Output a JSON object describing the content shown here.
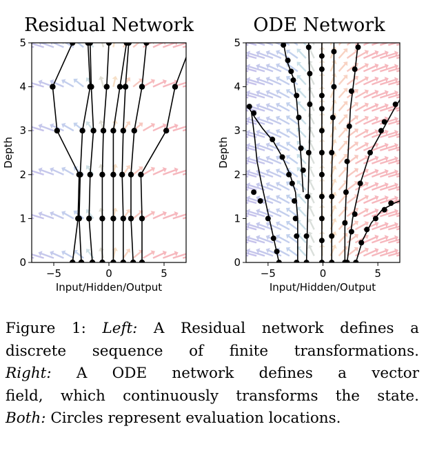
{
  "chart_data": [
    {
      "type": "line",
      "title": "Residual Network",
      "xlabel": "Input/Hidden/Output",
      "ylabel": "Depth",
      "xlim": [
        -7,
        7
      ],
      "ylim": [
        0,
        5
      ],
      "xticks": [
        "−5",
        "0",
        "5"
      ],
      "xtick_values": [
        -5,
        0,
        5
      ],
      "yticks": [
        "0",
        "1",
        "2",
        "3",
        "4",
        "5"
      ],
      "grid": false,
      "depths": [
        0,
        1,
        2,
        3,
        4,
        5
      ],
      "trajectories": [
        [
          -3.3,
          -2.8,
          -2.7,
          -4.7,
          -5.1,
          -3.3
        ],
        [
          -2.5,
          -2.7,
          -2.6,
          -2.4,
          -1.7,
          -1.9
        ],
        [
          -1.5,
          -1.8,
          -1.7,
          -1.4,
          -1.6,
          -1.7
        ],
        [
          -0.6,
          -0.6,
          -0.6,
          -0.5,
          -0.2,
          0.0
        ],
        [
          0.4,
          0.4,
          0.4,
          0.4,
          1.0,
          1.6
        ],
        [
          1.3,
          1.3,
          1.2,
          1.3,
          1.5,
          1.8
        ],
        [
          2.2,
          2.0,
          2.0,
          2.3,
          3.0,
          3.4
        ],
        [
          3.0,
          3.0,
          2.9,
          5.2,
          6.0,
          7.5
        ]
      ],
      "vector_field": "discrete"
    },
    {
      "type": "line",
      "title": "ODE Network",
      "xlabel": "Input/Hidden/Output",
      "ylabel": "Depth",
      "xlim": [
        -7,
        7
      ],
      "ylim": [
        0,
        5
      ],
      "xticks": [
        "−5",
        "0",
        "5"
      ],
      "xtick_values": [
        -5,
        0,
        5
      ],
      "yticks": [
        "0",
        "1",
        "2",
        "3",
        "4",
        "5"
      ],
      "grid": false,
      "trajectories": [
        {
          "x": [
            -4.0,
            -4.4,
            -4.8,
            -5.2,
            -5.6,
            -6.0,
            -6.2,
            -6.5
          ],
          "y": [
            0,
            0.45,
            0.9,
            1.35,
            1.8,
            2.3,
            2.8,
            3.4
          ],
          "markers": [
            [
              -4.0,
              0
            ],
            [
              -4.2,
              0.25
            ],
            [
              -4.5,
              0.55
            ],
            [
              -5.0,
              1.0
            ],
            [
              -5.7,
              1.4
            ],
            [
              -6.3,
              1.6
            ]
          ]
        },
        {
          "x": [
            -6.7,
            -6.2,
            -5.5,
            -4.5,
            -3.7,
            -3.0,
            -2.5,
            -2.3,
            -2.3
          ],
          "y": [
            3.5,
            3.3,
            3.05,
            2.75,
            2.4,
            2.0,
            1.6,
            1.0,
            0
          ],
          "markers": [
            [
              -6.7,
              3.55
            ],
            [
              -6.3,
              3.4
            ],
            [
              -4.6,
              2.8
            ],
            [
              -3.7,
              2.4
            ],
            [
              -3.1,
              2.0
            ],
            [
              -2.8,
              1.8
            ],
            [
              -2.6,
              1.4
            ],
            [
              -2.5,
              1.0
            ],
            [
              -2.4,
              0.6
            ],
            [
              -2.4,
              0
            ]
          ]
        },
        {
          "x": [
            -3.6,
            -3.3,
            -2.7,
            -2.4,
            -2.2,
            -2.0,
            -1.8
          ],
          "y": [
            5,
            4.6,
            4.2,
            3.7,
            3.1,
            2.4,
            1.6
          ],
          "markers": [
            [
              -3.6,
              4.95
            ],
            [
              -3.2,
              4.6
            ],
            [
              -2.9,
              4.35
            ],
            [
              -2.7,
              4.15
            ],
            [
              -2.4,
              3.8
            ],
            [
              -2.2,
              3.3
            ],
            [
              -2.0,
              2.6
            ],
            [
              -1.8,
              2.1
            ]
          ]
        },
        {
          "x": [
            -1.3,
            -1.2,
            -1.2,
            -1.3,
            -1.4,
            -1.5
          ],
          "y": [
            5,
            4.0,
            3.0,
            2.0,
            1.0,
            0
          ],
          "markers": [
            [
              -1.3,
              4.9
            ],
            [
              -1.2,
              4.3
            ],
            [
              -1.2,
              3.6
            ],
            [
              -1.3,
              2.5
            ],
            [
              -1.4,
              1.5
            ],
            [
              -1.5,
              0.6
            ],
            [
              -1.5,
              0
            ]
          ]
        },
        {
          "x": [
            -0.1,
            -0.1,
            -0.1,
            -0.1,
            -0.1
          ],
          "y": [
            5,
            3.8,
            2.5,
            1.2,
            0
          ],
          "markers": [
            [
              -0.1,
              4.7
            ],
            [
              -0.1,
              4.4
            ],
            [
              -0.1,
              3.8
            ],
            [
              -0.1,
              3.5
            ],
            [
              -0.1,
              3.0
            ],
            [
              -0.1,
              2.5
            ],
            [
              -0.1,
              2.0
            ],
            [
              -0.1,
              1.5
            ],
            [
              -0.1,
              1.0
            ],
            [
              -0.1,
              0.5
            ],
            [
              -0.1,
              0
            ]
          ]
        },
        {
          "x": [
            1.0,
            1.0,
            0.9,
            0.8,
            0.8,
            0.8
          ],
          "y": [
            5,
            4.0,
            3.0,
            2.0,
            1.0,
            0
          ],
          "markers": [
            [
              1.0,
              4.8
            ],
            [
              1.0,
              4.0
            ],
            [
              0.9,
              3.3
            ],
            [
              0.8,
              2.5
            ],
            [
              0.8,
              1.5
            ],
            [
              0.8,
              0.6
            ],
            [
              0.8,
              0
            ]
          ]
        },
        {
          "x": [
            3.2,
            2.9,
            2.5,
            2.3,
            2.1,
            2.0,
            2.0
          ],
          "y": [
            5,
            4.3,
            3.5,
            2.5,
            1.5,
            0.8,
            0
          ],
          "markers": [
            [
              3.2,
              4.9
            ],
            [
              2.9,
              4.4
            ],
            [
              2.6,
              3.9
            ],
            [
              2.4,
              3.1
            ],
            [
              2.2,
              2.3
            ],
            [
              2.1,
              1.6
            ],
            [
              2.0,
              0.9
            ],
            [
              2.0,
              0
            ]
          ]
        },
        {
          "x": [
            3.0,
            3.6,
            4.4,
            5.4,
            6.5,
            7.0
          ],
          "y": [
            0,
            0.5,
            0.9,
            1.2,
            1.35,
            1.4
          ],
          "markers": [
            [
              3.0,
              0
            ],
            [
              3.5,
              0.45
            ],
            [
              4.0,
              0.75
            ],
            [
              4.8,
              1.0
            ],
            [
              5.6,
              1.2
            ],
            [
              6.2,
              1.35
            ]
          ]
        },
        {
          "x": [
            2.2,
            2.7,
            3.4,
            4.3,
            5.4,
            6.5,
            7.0
          ],
          "y": [
            0,
            1.0,
            1.8,
            2.5,
            3.0,
            3.5,
            3.7
          ],
          "markers": [
            [
              2.2,
              0
            ],
            [
              2.6,
              0.7
            ],
            [
              2.9,
              1.1
            ],
            [
              3.4,
              1.8
            ],
            [
              4.3,
              2.5
            ],
            [
              5.3,
              3.0
            ],
            [
              5.6,
              3.2
            ],
            [
              6.6,
              3.6
            ]
          ]
        }
      ],
      "vector_field": "continuous"
    }
  ],
  "colors": {
    "left_field": "#8f7fd6",
    "center_field": "#7fc0e0",
    "mid_field": "#f2c08a",
    "right_field": "#ee6f7b",
    "trajectory": "#000000"
  },
  "caption": {
    "line1": {
      "label": "Figure 1:",
      "italic": "Left:",
      "text": "A Residual network defines a"
    },
    "line2": "discrete sequence of finite transformations.",
    "line3": {
      "italic": "Right:",
      "text": "A ODE network defines a vector"
    },
    "line4": "field, which continuously transforms the state.",
    "line5": {
      "italic": "Both:",
      "text": "Circles represent evaluation locations."
    }
  }
}
